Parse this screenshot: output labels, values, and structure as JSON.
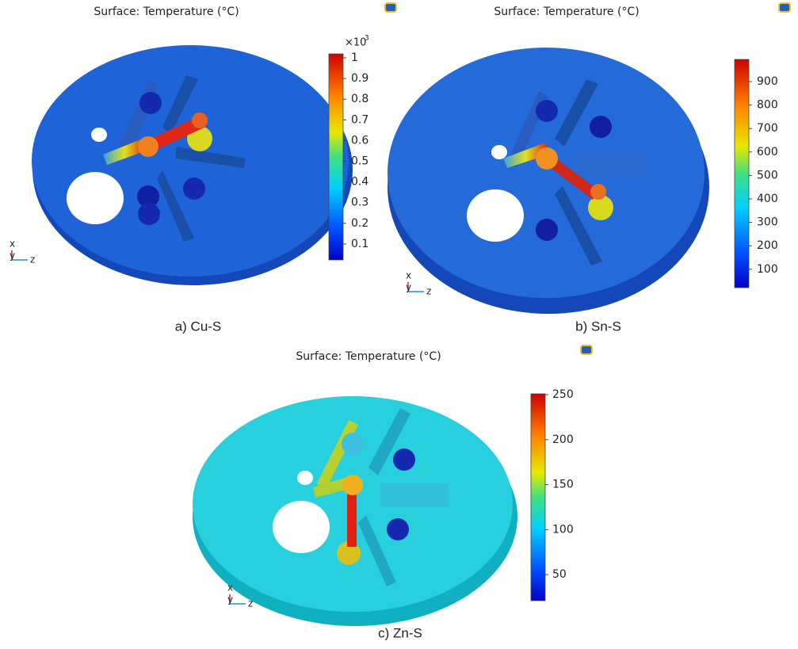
{
  "panels": [
    {
      "title": "Surface: Temperature (°C)",
      "colorbar_multiplier": "×10",
      "colorbar_exponent": "3",
      "colorbar_ticks": [
        1,
        0.9,
        0.8,
        0.7,
        0.6,
        0.5,
        0.4,
        0.3,
        0.2,
        0.1
      ],
      "axes": {
        "x": "x",
        "y": "y",
        "z": "z"
      },
      "caption": "a) Cu-S"
    },
    {
      "title": "Surface: Temperature (°C)",
      "colorbar_ticks": [
        900,
        800,
        700,
        600,
        500,
        400,
        300,
        200,
        100
      ],
      "axes": {
        "x": "x",
        "y": "y",
        "z": "z"
      },
      "caption": "b) Sn-S"
    },
    {
      "title": "Surface: Temperature (°C)",
      "colorbar_ticks": [
        250,
        200,
        150,
        100,
        50
      ],
      "axes": {
        "x": "x",
        "y": "y",
        "z": "z"
      },
      "caption": "c) Zn-S"
    }
  ]
}
